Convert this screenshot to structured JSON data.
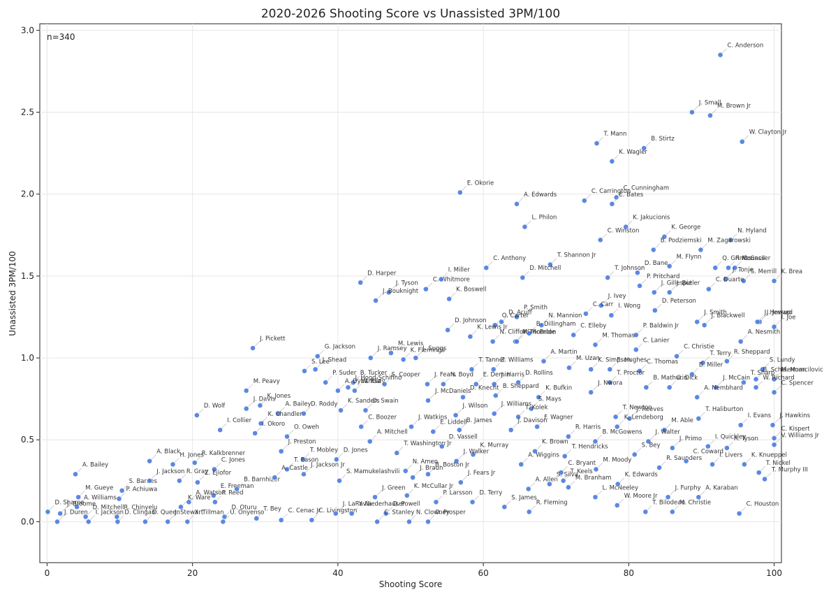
{
  "chart_data": {
    "type": "scatter",
    "title": "2020-2026 Shooting Score vs Unassisted 3PM/100",
    "x_label": "Shooting Score",
    "y_label": "Unassisted 3PM/100",
    "annotation": "n=340",
    "color": "#4a7de0",
    "grid": true,
    "xlim": [
      -1,
      101
    ],
    "ylim": [
      -0.25,
      3.04
    ],
    "xticks": [
      0,
      20,
      40,
      60,
      80,
      100
    ],
    "yticks": [
      {
        "value": 0,
        "label": "0.0"
      },
      0.5,
      {
        "value": 1,
        "label": "1.0"
      },
      1.5,
      {
        "value": 2,
        "label": "2.0"
      },
      2.5,
      {
        "value": 3,
        "label": "3.0"
      }
    ],
    "labels": [
      "C. Anderson",
      "J. Small",
      "M. Brown Jr",
      "W. Clayton Jr",
      "T. Mann",
      "B. Stirtz",
      "K. Wagler",
      "E. Okorie",
      "A. Edwards",
      "C. Carrington",
      "C. Cunningham",
      "E. Bates",
      "L. Philon",
      "K. Jakucionis",
      "K. George",
      "N. Hyland",
      "C. Winston",
      "B. Podziemski",
      "M. Zagarowski",
      "M. Flynn",
      "D. Bane",
      "Q. Grimes",
      "R. Council",
      "M. Sasser",
      "K. Brea",
      "S. Merrill",
      "J. Tonje",
      "C. Anthony",
      "T. Shannon Jr",
      "D. Mitchell",
      "T. Johnson",
      "P. Pritchard",
      "J. Butler",
      "C. Duarte",
      "J. Ivey",
      "J. Gillespie",
      "D. Harper",
      "J. Tyson",
      "C. Whitmore",
      "J. Bouknight",
      "I. Miller",
      "K. Boswell",
      "D. Peterson",
      "J. Smith",
      "J. Jessup",
      "I. Joe",
      "J. Howard",
      "D. Johnson",
      "D. Acuff",
      "P. Smith",
      "O. Carter",
      "N. Mannion",
      "C. Carr",
      "I. Wong",
      "P. Baldwin Jr",
      "C. Elleby",
      "J. Blackwell",
      "A. Nesmith",
      "K. Lewis Jr",
      "N. Clifford",
      "M. McBride",
      "B. Dillingham",
      "I. Thornton",
      "M. Thomas",
      "C. Lanier",
      "C. Christie",
      "T. Terry",
      "R. Sheppard",
      "S. Lundy",
      "J. Pickett",
      "G. Jackson",
      "J. Shead",
      "J. Ramsey",
      "M. Lewis",
      "J. Suggs",
      "S. Lee",
      "T. Tanner",
      "Z. Williams",
      "A. Martin",
      "M. Uzan",
      "K. Simpson",
      "E. Hughes",
      "C. Thomas",
      "B. Miller",
      "B. Scheierman",
      "M. Momcilovic",
      "C. Spencer",
      "K. Flemings",
      "P. Suder",
      "B. Tucker",
      "J. Hood-Schifino",
      "W. Riley",
      "J. Fears",
      "N. Boyd",
      "E. Demin",
      "J. Harris",
      "D. Rollins",
      "T. Proctor",
      "B. Mathurin",
      "G. Dick",
      "J. McCain",
      "T. Sharp",
      "W. Richard",
      "A. Dybantsa",
      "S. Cooper",
      "B. Sheppard",
      "J. Nwora",
      "A. Nembhard",
      "M. Peavy",
      "J. Davis",
      "K. Jones",
      "D. Wolf",
      "A. Bailey",
      "D. Roddy",
      "K. Sanders",
      "D. Swain",
      "J. McDaniels",
      "D. Knecht",
      "K. Bufkin",
      "S. Mays",
      "J. Wilson",
      "J. Williams",
      "T. Kolek",
      "I. Collier",
      "K. Chandler",
      "C. Boozer",
      "J. Watkins",
      "E. Liddell",
      "B. James",
      "T. Newton",
      "J. Reeves",
      "I. Okoro",
      "O. Oweh",
      "A. Mitchell",
      "T. Haliburton",
      "I. Evans",
      "J. Hawkins",
      "C. Kispert",
      "M. Able",
      "F. Wagner",
      "K. Lendeborg",
      "J. Davison",
      "R. Harris",
      "B. McGowens",
      "J. Walter",
      "J. Primo",
      "I. Quickley",
      "R. Tyson",
      "V. Williams Jr",
      "A. Black",
      "H. Jones",
      "R. Kalkbrenner",
      "C. Jones",
      "J. Preston",
      "T. Mobley",
      "D. Jones",
      "T. Washington Jr",
      "D. Vassell",
      "K. Murray",
      "J. Walker",
      "K. Brown",
      "T. Hendricks",
      "A. Wiggins",
      "C. Bryant",
      "T. Keels",
      "M. Moody",
      "S. Bey",
      "R. Saunders",
      "C. Coward",
      "I. Livers",
      "K. Knueppel",
      "T. Nickel",
      "T. Murphy III",
      "A. Bailey",
      "S. Barnes",
      "J. Jackson",
      "R. Gray",
      "Z. Ejiofor",
      "E. Freeman",
      "P. Reed",
      "A. Watson",
      "M. Gueye",
      "P. Achiuwa",
      "A. Williams",
      "K. Ware",
      "B. Barnhizer",
      "T. Eason",
      "J. Jackson Jr",
      "A. Castle",
      "S. Mamukelashvili",
      "N. Amen",
      "J. Braun",
      "J. Fears Jr",
      "B. Boston Jr",
      "J. Green",
      "K. McCullar Jr",
      "P. Larsson",
      "D. Terry",
      "A. Allen",
      "S. Silva",
      "M. Branham",
      "L. McNeeley",
      "K. Edwards",
      "W. Moore Jr",
      "J. Furphy",
      "A. Karaban",
      "C. Houston",
      "T. Bilodeau",
      "M. Christie",
      "S. James",
      "R. Fleming",
      "J. Duren",
      "D. Sharpe",
      "J. Broome",
      "D. Mitchell",
      "I. Jackson",
      "D. Clingan",
      "R. Chinyelu",
      "D. Queen",
      "J. Stewart",
      "X. Tillman",
      "U. Onyenso",
      "D. Oturu",
      "T. Bey",
      "C. Cenac Jr",
      "C. Livingston",
      "J. LaRavia",
      "Y. Niederhauser",
      "D. Powell",
      "C. Stanley",
      "N. Clowney",
      "O. Prosper"
    ],
    "x": [
      92.6,
      88.7,
      91.2,
      95.6,
      75.6,
      82.1,
      77.7,
      56.8,
      64.6,
      73.9,
      78.3,
      77.7,
      65.7,
      79.6,
      84.9,
      94.0,
      76.1,
      83.4,
      89.9,
      85.6,
      81.2,
      91.9,
      93.7,
      94.6,
      100,
      95.8,
      93.3,
      60.4,
      69.2,
      65.4,
      77.1,
      81.5,
      85.6,
      91.0,
      76.2,
      83.5,
      43.1,
      47.0,
      52.1,
      45.2,
      54.2,
      55.3,
      83.6,
      89.4,
      98.0,
      100,
      97.7,
      55.1,
      62.5,
      64.6,
      61.6,
      68.0,
      74.1,
      77.6,
      81.0,
      72.4,
      90.4,
      95.4,
      58.2,
      61.3,
      64.4,
      66.3,
      64.6,
      75.4,
      81.0,
      86.6,
      90.2,
      93.5,
      98.4,
      28.3,
      37.2,
      36.9,
      44.5,
      47.3,
      50.7,
      35.4,
      58.4,
      61.4,
      68.3,
      71.8,
      74.8,
      77.4,
      81.5,
      88.7,
      97.5,
      100,
      100,
      49.0,
      38.3,
      42.1,
      41.4,
      42.3,
      52.3,
      54.5,
      59.0,
      61.5,
      64.8,
      77.4,
      82.4,
      85.6,
      92.0,
      95.8,
      97.5,
      40.0,
      46.4,
      61.7,
      74.8,
      89.4,
      27.4,
      27.4,
      29.3,
      20.6,
      31.8,
      35.3,
      40.4,
      43.8,
      52.4,
      57.2,
      67.6,
      66.6,
      56.2,
      61.5,
      64.8,
      23.8,
      29.4,
      43.2,
      50.1,
      53.1,
      56.7,
      78.2,
      80.1,
      28.6,
      33.0,
      44.4,
      89.6,
      95.4,
      99.8,
      100,
      84.9,
      67.4,
      78.4,
      63.8,
      71.7,
      75.4,
      82.7,
      86.0,
      90.9,
      93.5,
      100,
      14.1,
      17.3,
      20.3,
      23.0,
      32.2,
      35.2,
      39.8,
      48.1,
      54.3,
      58.6,
      56.3,
      67.1,
      71.2,
      65.2,
      70.7,
      71.0,
      75.5,
      80.8,
      84.2,
      87.9,
      91.5,
      95.9,
      97.9,
      98.7,
      3.9,
      10.3,
      14.1,
      18.2,
      20.7,
      22.9,
      23.1,
      19.5,
      4.3,
      9.9,
      4.1,
      18.4,
      26.1,
      33.0,
      35.3,
      31.3,
      40.2,
      49.3,
      50.3,
      56.9,
      52.4,
      45.1,
      49.5,
      53.5,
      58.5,
      66.2,
      69.1,
      71.7,
      75.4,
      78.5,
      78.4,
      85.4,
      89.6,
      95.2,
      82.3,
      86.0,
      62.9,
      66.3,
      1.4,
      0.1,
      1.8,
      5.3,
      5.7,
      9.7,
      9.6,
      13.5,
      16.6,
      19.3,
      24.2,
      24.4,
      28.8,
      32.2,
      36.4,
      39.7,
      41.9,
      46.6,
      45.4,
      49.8,
      52.4
    ],
    "values": [
      2.85,
      2.5,
      2.48,
      2.32,
      2.31,
      2.28,
      2.2,
      2.01,
      1.94,
      1.96,
      1.98,
      1.94,
      1.8,
      1.8,
      1.74,
      1.72,
      1.72,
      1.66,
      1.66,
      1.56,
      1.52,
      1.55,
      1.55,
      1.55,
      1.47,
      1.47,
      1.48,
      1.55,
      1.57,
      1.49,
      1.49,
      1.44,
      1.4,
      1.42,
      1.32,
      1.4,
      1.46,
      1.4,
      1.42,
      1.35,
      1.48,
      1.36,
      1.29,
      1.22,
      1.22,
      1.19,
      1.22,
      1.17,
      1.22,
      1.25,
      1.2,
      1.2,
      1.27,
      1.26,
      1.14,
      1.14,
      1.2,
      1.1,
      1.13,
      1.1,
      1.1,
      1.15,
      1.1,
      1.08,
      1.05,
      1.01,
      0.97,
      0.98,
      0.93,
      1.06,
      1.01,
      0.93,
      1.0,
      1.03,
      1.0,
      0.92,
      0.93,
      0.93,
      0.98,
      0.94,
      0.93,
      0.93,
      0.92,
      0.9,
      0.87,
      0.87,
      0.79,
      0.99,
      0.85,
      0.85,
      0.82,
      0.8,
      0.84,
      0.84,
      0.84,
      0.84,
      0.85,
      0.85,
      0.82,
      0.82,
      0.82,
      0.85,
      0.82,
      0.8,
      0.84,
      0.77,
      0.79,
      0.76,
      0.8,
      0.69,
      0.71,
      0.65,
      0.66,
      0.66,
      0.68,
      0.68,
      0.74,
      0.76,
      0.76,
      0.69,
      0.65,
      0.66,
      0.64,
      0.56,
      0.6,
      0.58,
      0.58,
      0.55,
      0.56,
      0.64,
      0.63,
      0.54,
      0.52,
      0.49,
      0.63,
      0.59,
      0.59,
      0.51,
      0.56,
      0.58,
      0.58,
      0.56,
      0.52,
      0.49,
      0.49,
      0.45,
      0.46,
      0.45,
      0.47,
      0.37,
      0.35,
      0.36,
      0.32,
      0.43,
      0.38,
      0.38,
      0.42,
      0.46,
      0.41,
      0.37,
      0.43,
      0.4,
      0.35,
      0.3,
      0.25,
      0.32,
      0.41,
      0.33,
      0.37,
      0.35,
      0.35,
      0.3,
      0.26,
      0.29,
      0.19,
      0.25,
      0.25,
      0.24,
      0.16,
      0.12,
      0.12,
      0.15,
      0.14,
      0.09,
      0.09,
      0.2,
      0.32,
      0.29,
      0.27,
      0.25,
      0.31,
      0.27,
      0.24,
      0.29,
      0.15,
      0.16,
      0.12,
      0.12,
      0.2,
      0.23,
      0.21,
      0.15,
      0.23,
      0.1,
      0.15,
      0.15,
      0.05,
      0.06,
      0.06,
      0.09,
      0.06,
      0,
      0.06,
      0.05,
      0.03,
      0,
      0,
      0.03,
      0,
      0,
      0,
      0,
      0.03,
      0.02,
      0.01,
      0.01,
      0.05,
      0.05,
      0.05,
      0,
      0,
      0
    ]
  }
}
